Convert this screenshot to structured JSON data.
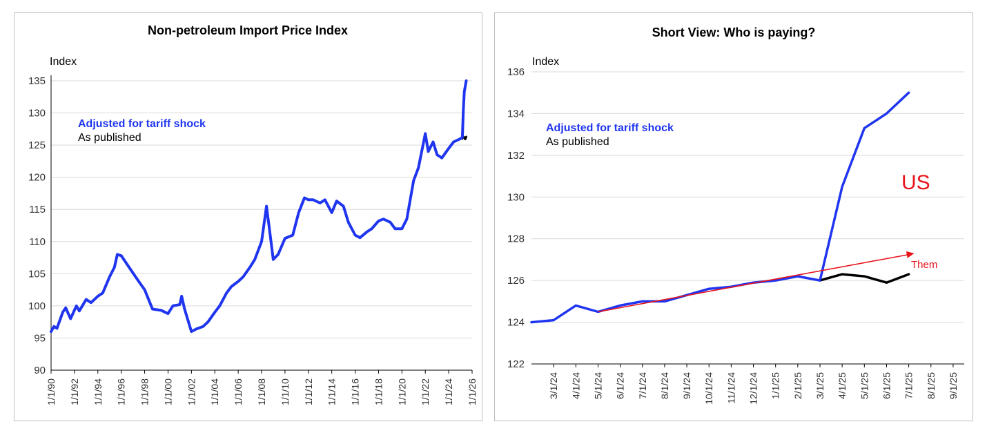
{
  "colors": {
    "adjusted": "#1f35ef",
    "published": "#000000",
    "annotation": "#e8141c",
    "grid": "#d9d9d9"
  },
  "chart_data": [
    {
      "type": "line",
      "title": "Non-petroleum Import Price Index",
      "ylabel": "Index",
      "ylim": [
        90,
        135
      ],
      "yticks": [
        "90",
        "95",
        "100",
        "105",
        "110",
        "115",
        "120",
        "125",
        "130",
        "135"
      ],
      "xlim": [
        1990,
        2026
      ],
      "xticks": [
        "1/1/90",
        "1/1/92",
        "1/1/94",
        "1/1/96",
        "1/1/98",
        "1/1/00",
        "1/1/02",
        "1/1/04",
        "1/1/06",
        "1/1/08",
        "1/1/10",
        "1/1/12",
        "1/1/14",
        "1/1/16",
        "1/1/18",
        "1/1/20",
        "1/1/22",
        "1/1/24",
        "1/1/26"
      ],
      "grid": true,
      "legend_position": "top-left",
      "series": [
        {
          "name": "Adjusted for tariff shock",
          "color": "#1f35ef",
          "x": [
            "1990-01",
            "1990-04",
            "1990-07",
            "1991-01",
            "1991-04",
            "1991-09",
            "1992-03",
            "1992-06",
            "1993-01",
            "1993-06",
            "1994-01",
            "1994-06",
            "1995-01",
            "1995-06",
            "1995-09",
            "1996-01",
            "1996-09",
            "1997-06",
            "1998-01",
            "1998-09",
            "1999-06",
            "2000-01",
            "2000-06",
            "2001-01",
            "2001-03",
            "2001-06",
            "2002-01",
            "2002-06",
            "2003-01",
            "2003-06",
            "2004-01",
            "2004-06",
            "2005-01",
            "2005-06",
            "2006-01",
            "2006-06",
            "2007-01",
            "2007-06",
            "2008-01",
            "2008-06",
            "2008-09",
            "2009-01",
            "2009-06",
            "2010-01",
            "2010-09",
            "2011-03",
            "2011-09",
            "2012-01",
            "2012-06",
            "2013-01",
            "2013-06",
            "2014-01",
            "2014-06",
            "2015-01",
            "2015-06",
            "2016-01",
            "2016-06",
            "2017-01",
            "2017-06",
            "2018-01",
            "2018-06",
            "2019-01",
            "2019-06",
            "2020-01",
            "2020-06",
            "2021-01",
            "2021-06",
            "2022-01",
            "2022-04",
            "2022-09",
            "2023-01",
            "2023-06",
            "2024-01",
            "2024-06",
            "2025-01",
            "2025-03",
            "2025-04",
            "2025-05",
            "2025-07"
          ],
          "values": [
            96.0,
            96.8,
            96.5,
            99.0,
            99.7,
            98.0,
            100.0,
            99.2,
            101.0,
            100.5,
            101.5,
            102.0,
            104.5,
            106.0,
            108.0,
            107.8,
            106.0,
            104.0,
            102.5,
            99.5,
            99.3,
            98.8,
            100.0,
            100.2,
            101.5,
            99.5,
            96.0,
            96.4,
            96.8,
            97.5,
            99.0,
            100.0,
            102.0,
            103.0,
            103.8,
            104.5,
            106.0,
            107.2,
            110.0,
            115.5,
            112.0,
            107.2,
            108.0,
            110.5,
            111.0,
            114.5,
            116.8,
            116.5,
            116.5,
            116.0,
            116.5,
            114.5,
            116.3,
            115.5,
            113.0,
            111.0,
            110.6,
            111.5,
            112.0,
            113.2,
            113.5,
            113.0,
            112.0,
            112.0,
            113.5,
            119.5,
            121.5,
            126.8,
            124.0,
            125.5,
            123.5,
            123.0,
            124.5,
            125.5,
            126.0,
            126.2,
            130.5,
            133.3,
            135.0
          ]
        },
        {
          "name": "As published",
          "color": "#000000",
          "x": [
            "2025-03",
            "2025-04",
            "2025-05",
            "2025-06",
            "2025-07"
          ],
          "values": [
            126.0,
            126.3,
            126.2,
            125.9,
            126.3
          ]
        }
      ]
    },
    {
      "type": "line",
      "title": "Short View: Who is paying?",
      "ylabel": "Index",
      "ylim": [
        122,
        136
      ],
      "yticks": [
        "122",
        "124",
        "126",
        "128",
        "130",
        "132",
        "134",
        "136"
      ],
      "categories": [
        "3/1/24",
        "4/1/24",
        "5/1/24",
        "6/1/24",
        "7/1/24",
        "8/1/24",
        "9/1/24",
        "10/1/24",
        "11/1/24",
        "12/1/24",
        "1/1/25",
        "2/1/25",
        "3/1/25",
        "4/1/25",
        "5/1/25",
        "6/1/25",
        "7/1/25",
        "8/1/25",
        "9/1/25"
      ],
      "grid": true,
      "legend_position": "top-left",
      "series": [
        {
          "name": "Adjusted for tariff shock",
          "color": "#1f35ef",
          "x": [
            "2/1/24",
            "3/1/24",
            "4/1/24",
            "5/1/24",
            "6/1/24",
            "7/1/24",
            "8/1/24",
            "9/1/24",
            "10/1/24",
            "11/1/24",
            "12/1/24",
            "1/1/25",
            "2/1/25",
            "3/1/25",
            "4/1/25",
            "5/1/25",
            "6/1/25",
            "7/1/25"
          ],
          "values": [
            124.0,
            124.1,
            124.8,
            124.5,
            124.8,
            125.0,
            125.0,
            125.3,
            125.6,
            125.7,
            125.9,
            126.0,
            126.2,
            126.0,
            130.5,
            133.3,
            134.0,
            135.0
          ]
        },
        {
          "name": "As published",
          "color": "#000000",
          "x": [
            "3/1/25",
            "4/1/25",
            "5/1/25",
            "6/1/25",
            "7/1/25"
          ],
          "values": [
            126.0,
            126.3,
            126.2,
            125.9,
            126.3
          ]
        }
      ],
      "annotations": [
        {
          "text": "US",
          "color": "#e8141c"
        },
        {
          "text": "Them",
          "color": "#e8141c",
          "arrow_from": {
            "x": "5/1/24",
            "y": 124.5
          },
          "arrow_to": {
            "x": "7/1/25",
            "y": 127.3
          }
        }
      ]
    }
  ]
}
